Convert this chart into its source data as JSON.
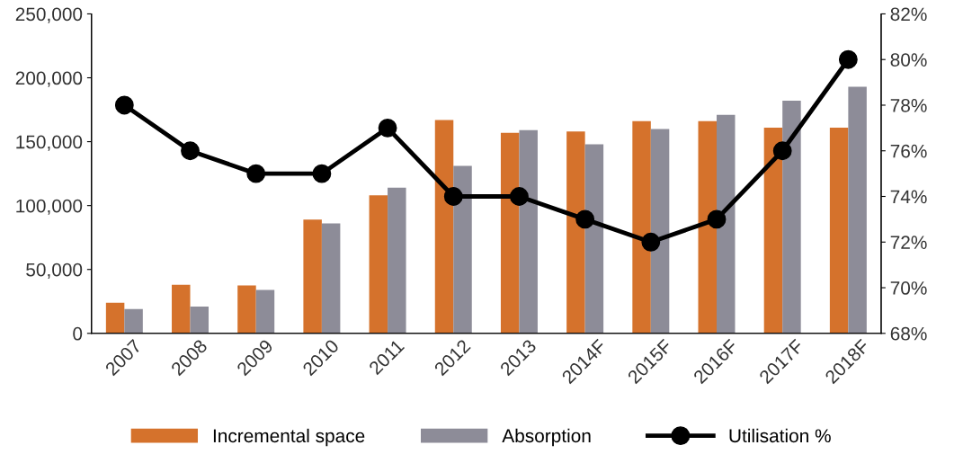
{
  "chart_data": {
    "type": "bar",
    "categories": [
      "2007",
      "2008",
      "2009",
      "2010",
      "2011",
      "2012",
      "2013",
      "2014F",
      "2015F",
      "2016F",
      "2017F",
      "2018F"
    ],
    "series": [
      {
        "name": "Incremental space",
        "color": "#d5722c",
        "values": [
          24000,
          38000,
          37500,
          89000,
          108000,
          167000,
          157000,
          158000,
          166000,
          166000,
          161000,
          161000
        ]
      },
      {
        "name": "Absorption",
        "color": "#8d8c98",
        "values": [
          19000,
          21000,
          34000,
          86000,
          114000,
          131000,
          159000,
          148000,
          160000,
          171000,
          182000,
          193000
        ]
      },
      {
        "name": "Utilisation %",
        "type": "line",
        "axis": "y2",
        "color": "#000000",
        "marker": "circle",
        "values": [
          78,
          76,
          75,
          75,
          77,
          74,
          74,
          73,
          72,
          73,
          76,
          80
        ]
      }
    ],
    "ylim": [
      0,
      250000
    ],
    "yticks": [
      {
        "value": 0,
        "label": "0"
      },
      {
        "value": 50000,
        "label": "50,000"
      },
      {
        "value": 100000,
        "label": "100,000"
      },
      {
        "value": 150000,
        "label": "150,000"
      },
      {
        "value": 200000,
        "label": "200,000"
      },
      {
        "value": 250000,
        "label": "250,000"
      }
    ],
    "y2lim": [
      68,
      82
    ],
    "y2ticks": [
      {
        "value": 68,
        "label": "68%"
      },
      {
        "value": 70,
        "label": "70%"
      },
      {
        "value": 72,
        "label": "72%"
      },
      {
        "value": 74,
        "label": "74%"
      },
      {
        "value": 76,
        "label": "76%"
      },
      {
        "value": 78,
        "label": "78%"
      },
      {
        "value": 80,
        "label": "80%"
      },
      {
        "value": 82,
        "label": "82%"
      }
    ],
    "grid": false,
    "legend": "bottom"
  }
}
